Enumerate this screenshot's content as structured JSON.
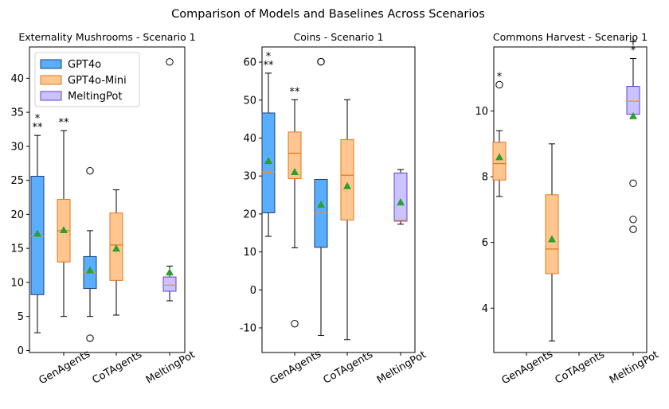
{
  "figure": {
    "suptitle": "Comparison of Models and Baselines Across Scenarios"
  },
  "colors": {
    "GPT4o_fill": "#5aaeff",
    "GPT4o_edge": "#1f3d7a",
    "GPT4o_median": "#f28c28",
    "GPT4o-Mini_fill": "#ffc78f",
    "GPT4o-Mini_edge": "#e0751f",
    "GPT4o-Mini_median": "#e0751f",
    "MeltingPot_fill": "#c9c3ff",
    "MeltingPot_edge": "#6b3fd4",
    "MeltingPot_median": "#f28c28",
    "mean_marker": "#2ca02c"
  },
  "legend": {
    "location": "upper-left-of-first-panel",
    "items": [
      "GPT4o",
      "GPT4o-Mini",
      "MeltingPot"
    ]
  },
  "chart_data": [
    {
      "type": "box",
      "title": "Externality Mushrooms - Scenario 1",
      "categories": [
        "GenAgents",
        "CoTAgents",
        "MeltingPot"
      ],
      "ylim": [
        -0.3,
        44.6
      ],
      "yticks": [
        0,
        5,
        10,
        15,
        20,
        25,
        30,
        35,
        40
      ],
      "boxes": [
        {
          "series": "GPT4o",
          "category": "GenAgents",
          "offset": -0.5,
          "q1": 8.2,
          "median": 16.8,
          "q3": 25.6,
          "whislo": 2.6,
          "whishi": 31.6,
          "mean": 17.2,
          "fliers": [],
          "annotations": [
            "*",
            "**"
          ]
        },
        {
          "series": "GPT4o-Mini",
          "category": "GenAgents",
          "offset": 0.0,
          "q1": 13.0,
          "median": 17.6,
          "q3": 22.2,
          "whislo": 5.0,
          "whishi": 32.3,
          "mean": 17.7,
          "fliers": [],
          "annotations": [
            "**"
          ]
        },
        {
          "series": "GPT4o",
          "category": "CoTAgents",
          "offset": -0.5,
          "q1": 9.1,
          "median": 11.5,
          "q3": 13.8,
          "whislo": 5.0,
          "whishi": 17.6,
          "mean": 11.8,
          "fliers": [
            1.8,
            26.4
          ],
          "annotations": []
        },
        {
          "series": "GPT4o-Mini",
          "category": "CoTAgents",
          "offset": 0.0,
          "q1": 10.3,
          "median": 15.5,
          "q3": 20.2,
          "whislo": 5.2,
          "whishi": 23.6,
          "mean": 15.0,
          "fliers": [],
          "annotations": []
        },
        {
          "series": "MeltingPot",
          "category": "MeltingPot",
          "offset": 0.0,
          "q1": 8.7,
          "median": 9.6,
          "q3": 10.8,
          "whislo": 7.3,
          "whishi": 12.4,
          "mean": 11.5,
          "fliers": [
            42.4
          ],
          "annotations": []
        }
      ]
    },
    {
      "type": "box",
      "title": "Coins - Scenario 1",
      "categories": [
        "GenAgents",
        "CoTAgents",
        "MeltingPot"
      ],
      "ylim": [
        -16.5,
        64
      ],
      "yticks": [
        -10,
        0,
        10,
        20,
        30,
        40,
        50,
        60
      ],
      "boxes": [
        {
          "series": "GPT4o",
          "category": "GenAgents",
          "offset": -0.5,
          "q1": 20.3,
          "median": 31.0,
          "q3": 46.6,
          "whislo": 14.1,
          "whishi": 57.1,
          "mean": 34.0,
          "fliers": [],
          "annotations": [
            "*",
            "**"
          ]
        },
        {
          "series": "GPT4o-Mini",
          "category": "GenAgents",
          "offset": 0.0,
          "q1": 29.3,
          "median": 36.0,
          "q3": 41.6,
          "whislo": 11.1,
          "whishi": 50.1,
          "mean": 31.1,
          "fliers": [
            -8.9
          ],
          "annotations": [
            "**"
          ]
        },
        {
          "series": "GPT4o",
          "category": "CoTAgents",
          "offset": -0.5,
          "q1": 11.2,
          "median": 20.2,
          "q3": 29.1,
          "whislo": -12.0,
          "whishi": 29.1,
          "mean": 22.5,
          "fliers": [
            60.1,
            60.1
          ],
          "annotations": []
        },
        {
          "series": "GPT4o-Mini",
          "category": "CoTAgents",
          "offset": 0.0,
          "q1": 18.4,
          "median": 30.2,
          "q3": 39.6,
          "whislo": -13.1,
          "whishi": 50.1,
          "mean": 27.4,
          "fliers": [],
          "annotations": []
        },
        {
          "series": "MeltingPot",
          "category": "MeltingPot",
          "offset": 0.0,
          "q1": 18.1,
          "median": 18.3,
          "q3": 30.8,
          "whislo": 17.3,
          "whishi": 31.7,
          "mean": 23.1,
          "fliers": [],
          "annotations": []
        }
      ]
    },
    {
      "type": "box",
      "title": "Commons Harvest - Scenario 1",
      "categories": [
        "GenAgents",
        "CoTAgents",
        "MeltingPot"
      ],
      "ylim": [
        2.65,
        11.95
      ],
      "yticks": [
        4,
        6,
        8,
        10
      ],
      "boxes": [
        {
          "series": "GPT4o-Mini",
          "category": "GenAgents",
          "offset": -0.5,
          "q1": 7.9,
          "median": 8.4,
          "q3": 9.05,
          "whislo": 7.4,
          "whishi": 9.4,
          "mean": 8.6,
          "fliers": [
            10.8
          ],
          "annotations": [
            "*"
          ]
        },
        {
          "series": "GPT4o-Mini",
          "category": "CoTAgents",
          "offset": -0.5,
          "q1": 5.05,
          "median": 5.8,
          "q3": 7.45,
          "whislo": 3.0,
          "whishi": 9.0,
          "mean": 6.1,
          "fliers": [],
          "annotations": []
        },
        {
          "series": "MeltingPot",
          "category": "MeltingPot",
          "offset": 0.0,
          "q1": 9.9,
          "median": 10.3,
          "q3": 10.75,
          "whislo": 9.8,
          "whishi": 11.6,
          "mean": 9.85,
          "fliers": [
            7.8,
            6.7,
            6.4
          ],
          "annotations": [
            "+",
            "*"
          ]
        }
      ]
    }
  ]
}
